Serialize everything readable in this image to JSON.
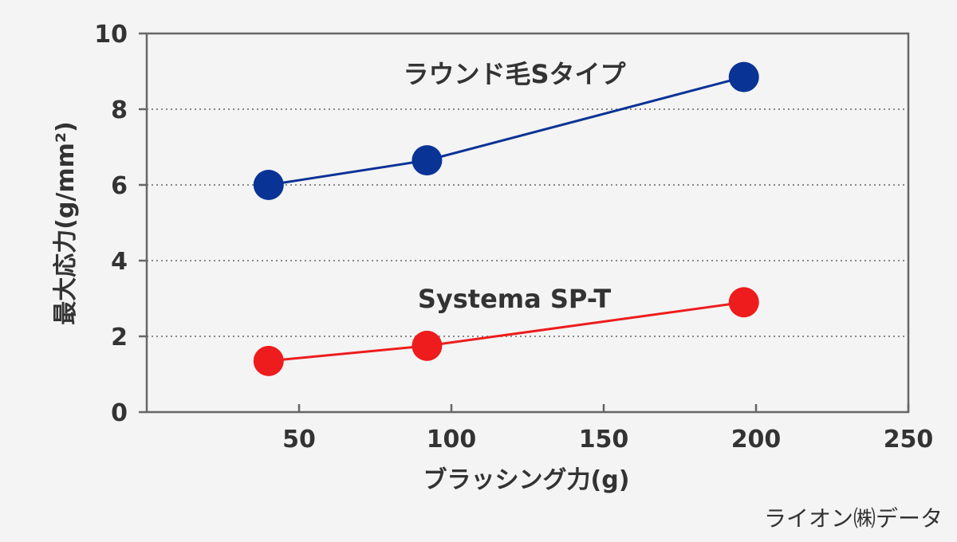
{
  "chart_data": {
    "type": "line",
    "title": "",
    "xlabel": "ブラッシング力(g)",
    "ylabel": "最大応力(g/mm²)",
    "xlim": [
      0,
      250
    ],
    "ylim": [
      0,
      10
    ],
    "x_ticks": [
      50,
      100,
      150,
      200,
      250
    ],
    "y_ticks": [
      0,
      2,
      4,
      6,
      8,
      10
    ],
    "grid": "horizontal-dotted",
    "series": [
      {
        "name": "ラウンド毛Sタイプ",
        "color": "#0a3396",
        "x": [
          40,
          92,
          196
        ],
        "y": [
          6.0,
          6.65,
          8.85
        ]
      },
      {
        "name": "Systema SP-T",
        "color": "#ee1c1c",
        "x": [
          40,
          92,
          196
        ],
        "y": [
          1.35,
          1.75,
          2.9
        ]
      }
    ]
  },
  "source_note": "ライオン㈱データ"
}
